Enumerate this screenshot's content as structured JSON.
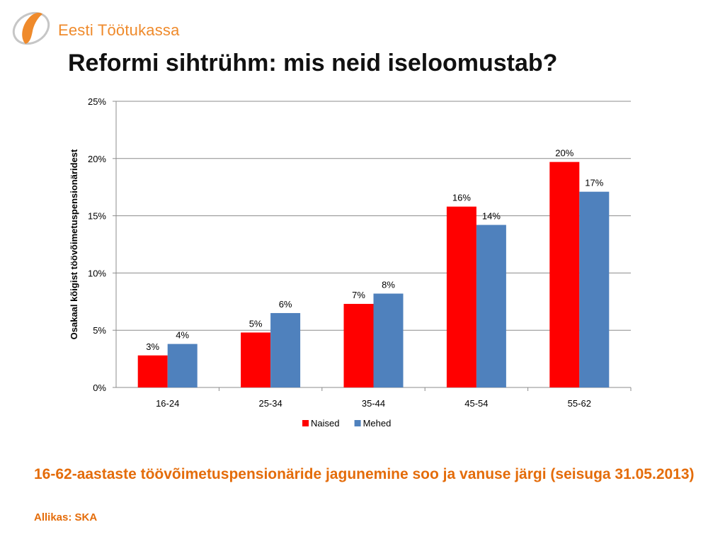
{
  "header": {
    "logo_text": "Eesti Töötukassa",
    "title": "Reformi sihtrühm: mis neid iseloomustab?"
  },
  "chart_data": {
    "type": "bar",
    "title": "",
    "xlabel": "",
    "ylabel": "Osakaal kõigist töövõimetuspensionäridest",
    "ylim": [
      0,
      25
    ],
    "yticks": [
      0,
      5,
      10,
      15,
      20,
      25
    ],
    "ytick_labels": [
      "0%",
      "5%",
      "10%",
      "15%",
      "20%",
      "25%"
    ],
    "categories": [
      "16-24",
      "25-34",
      "35-44",
      "45-54",
      "55-62"
    ],
    "series": [
      {
        "name": "Naised",
        "color": "#ff0000",
        "values": [
          2.8,
          4.8,
          7.3,
          15.8,
          19.7
        ],
        "labels": [
          "3%",
          "5%",
          "7%",
          "16%",
          "20%"
        ]
      },
      {
        "name": "Mehed",
        "color": "#4f81bd",
        "values": [
          3.8,
          6.5,
          8.2,
          14.2,
          17.1
        ],
        "labels": [
          "4%",
          "6%",
          "8%",
          "14%",
          "17%"
        ]
      }
    ],
    "grid": true,
    "legend": "bottom"
  },
  "caption": {
    "text": "16-62-aastaste töövõimetuspensionäride jagunemine soo ja vanuse järgi (seisuga 31.05.2013)",
    "source": "Allikas: SKA"
  },
  "colors": {
    "accent": "#e46c0a",
    "logo": "#ef8a2b"
  }
}
